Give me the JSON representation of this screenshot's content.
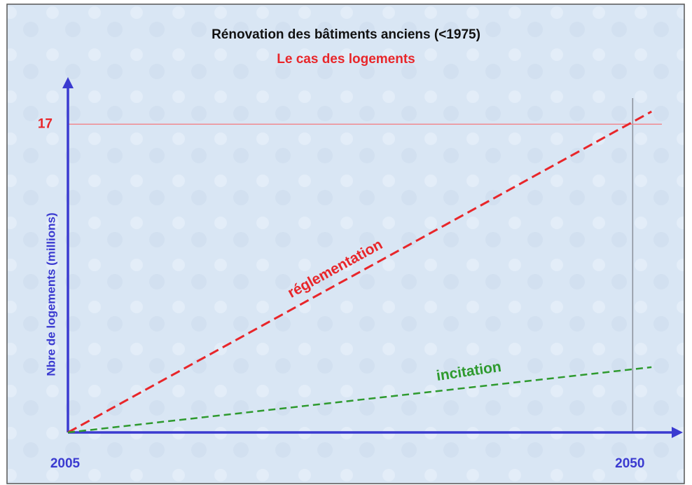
{
  "chart_data": {
    "type": "line",
    "title": "Rénovation des bâtiments anciens (<1975)",
    "subtitle": "Le cas des logements",
    "ylabel": "Nbre de logements (millions)",
    "x": [
      2005,
      2051.5
    ],
    "series": [
      {
        "name": "réglementation",
        "color": "#e8262a",
        "values": [
          0,
          17.7
        ]
      },
      {
        "name": "incitation",
        "color": "#2e9a2e",
        "values": [
          0,
          3.6
        ]
      }
    ],
    "xlim": [
      2005,
      2054
    ],
    "ylim": [
      0,
      19.6
    ],
    "xticks": [
      2005,
      2050
    ],
    "yticks": [
      17
    ],
    "grid": true,
    "xgrid_color": "#8a8f99",
    "ygrid_color": "#f08a90",
    "axis_color": "#3a3ad0",
    "ytick_color": "#e8262a",
    "xtick_color": "#3a3ad0",
    "dashed": true
  }
}
